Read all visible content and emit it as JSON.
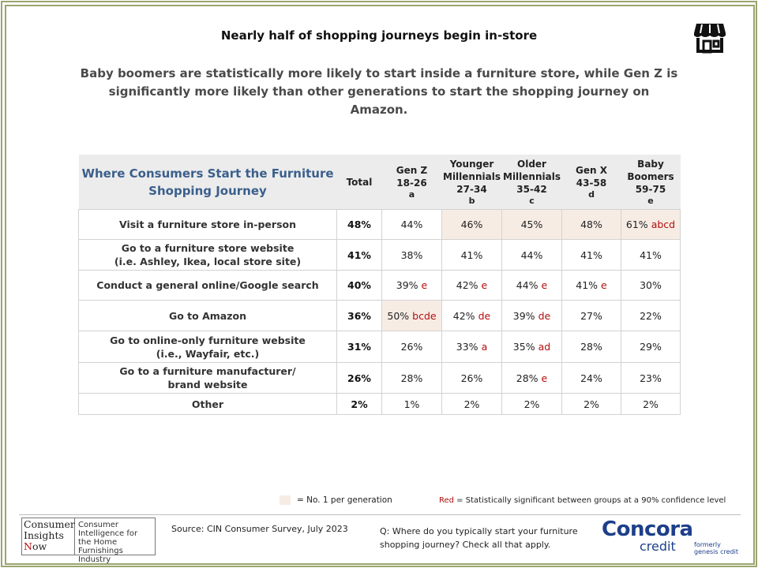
{
  "title": "Nearly half of shopping  journeys  begin in-store",
  "subtitle": "Baby boomers are statistically more likely to start inside a furniture store, while Gen Z is significantly more likely than other generations to start the shopping journey on Amazon.",
  "table": {
    "corner_label": "Where Consumers Start the Furniture Shopping Journey",
    "total_label": "Total",
    "columns": [
      {
        "name": "Gen Z",
        "range": "18-26",
        "letter": "a"
      },
      {
        "name": "Younger Millennials",
        "range": "27-34",
        "letter": "b"
      },
      {
        "name": "Older Millennials",
        "range": "35-42",
        "letter": "c"
      },
      {
        "name": "Gen X",
        "range": "43-58",
        "letter": "d"
      },
      {
        "name": "Baby Boomers",
        "range": "59-75",
        "letter": "e"
      }
    ],
    "rows": [
      {
        "label": "Visit a furniture store in-person",
        "total": "48%",
        "cells": [
          {
            "v": "44%",
            "sig": "",
            "hl": false
          },
          {
            "v": "46%",
            "sig": "",
            "hl": true
          },
          {
            "v": "45%",
            "sig": "",
            "hl": true
          },
          {
            "v": "48%",
            "sig": "",
            "hl": true
          },
          {
            "v": "61%",
            "sig": "abcd",
            "hl": true
          }
        ]
      },
      {
        "label": "Go to a furniture store website\n(i.e. Ashley, Ikea, local store site)",
        "total": "41%",
        "cells": [
          {
            "v": "38%",
            "sig": "",
            "hl": false
          },
          {
            "v": "41%",
            "sig": "",
            "hl": false
          },
          {
            "v": "44%",
            "sig": "",
            "hl": false
          },
          {
            "v": "41%",
            "sig": "",
            "hl": false
          },
          {
            "v": "41%",
            "sig": "",
            "hl": false
          }
        ]
      },
      {
        "label": "Conduct a general online/Google search",
        "total": "40%",
        "cells": [
          {
            "v": "39%",
            "sig": "e",
            "hl": false
          },
          {
            "v": "42%",
            "sig": "e",
            "hl": false
          },
          {
            "v": "44%",
            "sig": "e",
            "hl": false
          },
          {
            "v": "41%",
            "sig": "e",
            "hl": false
          },
          {
            "v": "30%",
            "sig": "",
            "hl": false
          }
        ]
      },
      {
        "label": "Go to Amazon",
        "total": "36%",
        "cells": [
          {
            "v": "50%",
            "sig": "bcde",
            "hl": true
          },
          {
            "v": "42%",
            "sig": "de",
            "hl": false
          },
          {
            "v": "39%",
            "sig": "de",
            "hl": false
          },
          {
            "v": "27%",
            "sig": "",
            "hl": false
          },
          {
            "v": "22%",
            "sig": "",
            "hl": false
          }
        ]
      },
      {
        "label": "Go to online-only furniture website\n(i.e., Wayfair, etc.)",
        "total": "31%",
        "cells": [
          {
            "v": "26%",
            "sig": "",
            "hl": false
          },
          {
            "v": "33%",
            "sig": "a",
            "hl": false
          },
          {
            "v": "35%",
            "sig": "ad",
            "hl": false
          },
          {
            "v": "28%",
            "sig": "",
            "hl": false
          },
          {
            "v": "29%",
            "sig": "",
            "hl": false
          }
        ]
      },
      {
        "label": "Go to a furniture manufacturer/\nbrand website",
        "total": "26%",
        "cells": [
          {
            "v": "28%",
            "sig": "",
            "hl": false
          },
          {
            "v": "26%",
            "sig": "",
            "hl": false
          },
          {
            "v": "28%",
            "sig": "e",
            "hl": false
          },
          {
            "v": "24%",
            "sig": "",
            "hl": false
          },
          {
            "v": "23%",
            "sig": "",
            "hl": false
          }
        ]
      },
      {
        "label": "Other",
        "total": "2%",
        "cells": [
          {
            "v": "1%",
            "sig": "",
            "hl": false
          },
          {
            "v": "2%",
            "sig": "",
            "hl": false
          },
          {
            "v": "2%",
            "sig": "",
            "hl": false
          },
          {
            "v": "2%",
            "sig": "",
            "hl": false
          },
          {
            "v": "2%",
            "sig": "",
            "hl": false
          }
        ]
      }
    ]
  },
  "legend": {
    "highlight_text": "= No. 1 per generation",
    "red_word": "Red",
    "red_text": " = Statistically significant between groups at a 90% confidence level"
  },
  "footer": {
    "logo_left_line1": "Consumer",
    "logo_left_line2": "Insights",
    "logo_left_line3_initial": "N",
    "logo_left_line3_rest": "ow",
    "logo_right": "Consumer Intelligence for the Home Furnishings Industry",
    "source": "Source:  CIN Consumer Survey, July 2023",
    "question": "Q: Where do you typically start your furniture shopping journey? Check all that apply.",
    "brand_name": "Concora",
    "brand_sub": "credit",
    "formerly_line1": "formerly",
    "formerly_line2": "genesis credit"
  },
  "colors": {
    "frame": "#9aa56e",
    "highlight": "#f7ece4",
    "significance_red": "#b30e0e",
    "header_blue": "#3b5f8c",
    "brand_blue": "#1d3f8a",
    "brand_orange": "#f07e20"
  },
  "icons": {
    "top_right": "storefront-icon"
  }
}
